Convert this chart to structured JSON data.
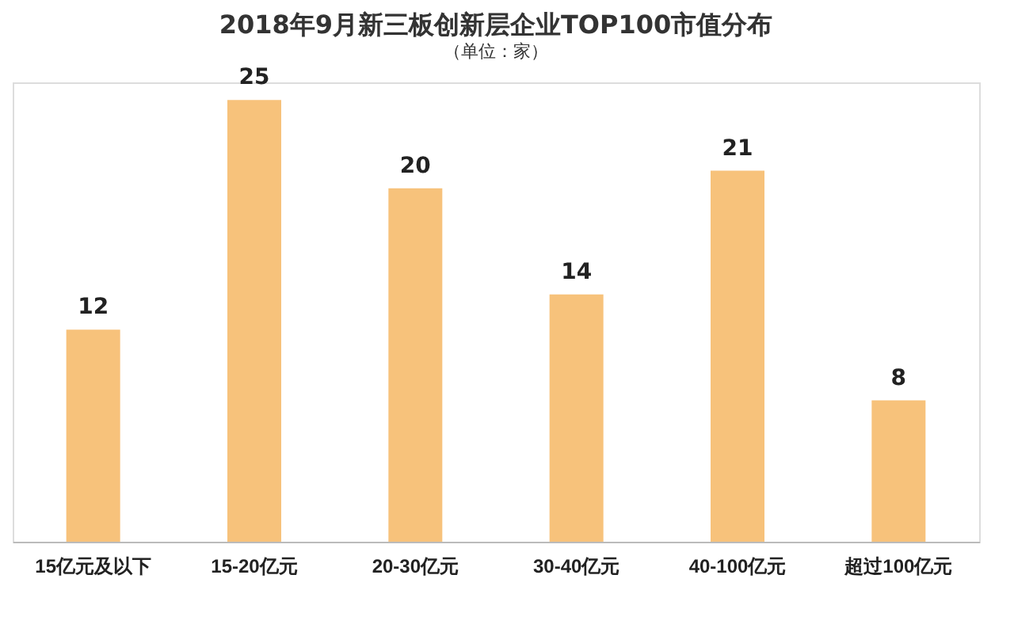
{
  "chart_data": {
    "type": "bar",
    "title": "2018年9月新三板创新层企业TOP100市值分布",
    "subtitle": "（单位：家）",
    "categories": [
      "15亿元及以下",
      "15-20亿元",
      "20-30亿元",
      "30-40亿元",
      "40-100亿元",
      "超过100亿元"
    ],
    "values": [
      12,
      25,
      20,
      14,
      21,
      8
    ],
    "color": "#f7c27b",
    "data_labels": true,
    "grid": false
  }
}
